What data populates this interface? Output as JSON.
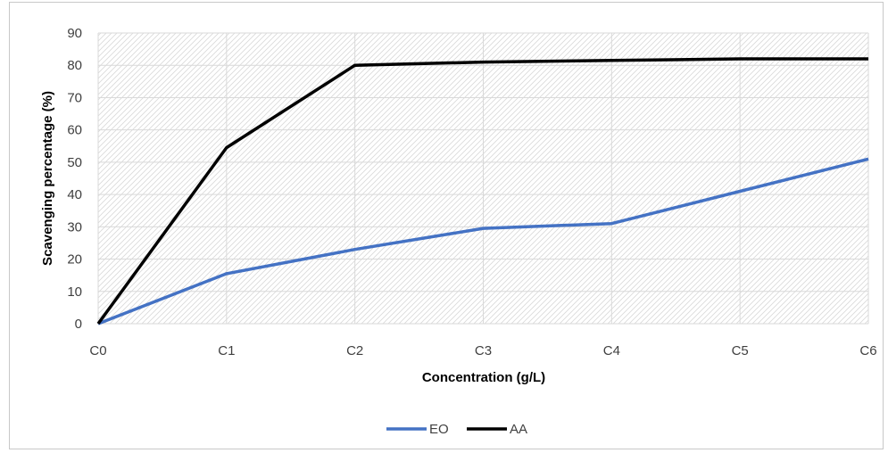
{
  "chart_data": {
    "type": "line",
    "title": "",
    "xlabel": "Concentration  (g/L)",
    "ylabel": "Scavenging percentage (%)",
    "categories": [
      "C0",
      "C1",
      "C2",
      "C3",
      "C4",
      "C5",
      "C6"
    ],
    "ylim": [
      0,
      90
    ],
    "yticks": [
      0,
      10,
      20,
      30,
      40,
      50,
      60,
      70,
      80,
      90
    ],
    "grid": true,
    "legend_position": "bottom",
    "series": [
      {
        "name": "EO",
        "color": "#4472c4",
        "values": [
          0,
          15.5,
          23,
          29.5,
          31,
          41,
          51
        ]
      },
      {
        "name": "AA",
        "color": "#000000",
        "values": [
          0,
          54.5,
          80,
          81,
          81.5,
          82,
          82
        ]
      }
    ]
  }
}
